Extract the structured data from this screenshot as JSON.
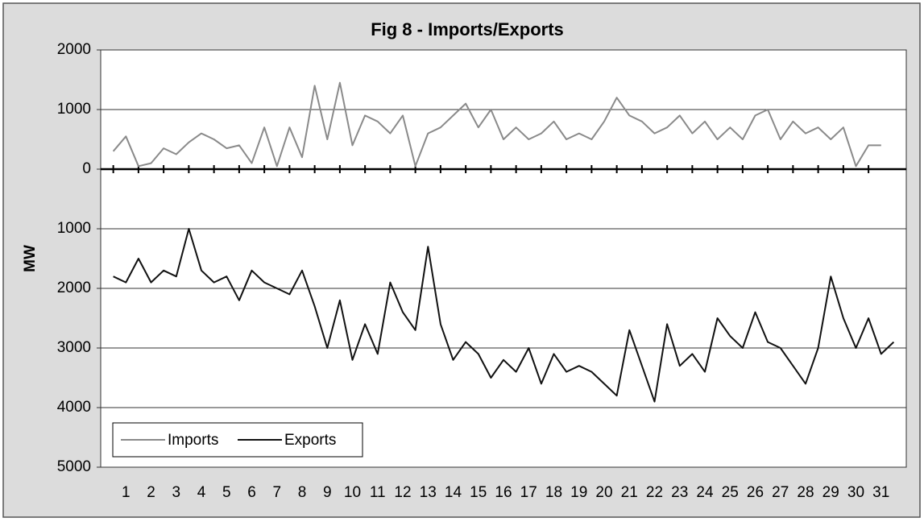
{
  "chart_data": {
    "type": "line",
    "title": "Fig 8 - Imports/Exports",
    "y_label": "MW",
    "x": [
      0.5,
      1,
      1.5,
      2,
      2.5,
      3,
      3.5,
      4,
      4.5,
      5,
      5.5,
      6,
      6.5,
      7,
      7.5,
      8,
      8.5,
      9,
      9.5,
      10,
      10.5,
      11,
      11.5,
      12,
      12.5,
      13,
      13.5,
      14,
      14.5,
      15,
      15.5,
      16,
      16.5,
      17,
      17.5,
      18,
      18.5,
      19,
      19.5,
      20,
      20.5,
      21,
      21.5,
      22,
      22.5,
      23,
      23.5,
      24,
      24.5,
      25,
      25.5,
      26,
      26.5,
      27,
      27.5,
      28,
      28.5,
      29,
      29.5,
      30,
      30.5,
      31,
      31.5
    ],
    "series": [
      {
        "name": "Imports",
        "color": "#8a8a8a",
        "values": [
          300,
          550,
          50,
          100,
          350,
          250,
          450,
          600,
          500,
          350,
          400,
          100,
          700,
          50,
          700,
          200,
          1400,
          500,
          1450,
          400,
          900,
          800,
          600,
          900,
          50,
          600,
          700,
          900,
          1100,
          700,
          1000,
          500,
          700,
          500,
          600,
          800,
          500,
          600,
          500,
          800,
          1200,
          900,
          800,
          600,
          700,
          900,
          600,
          800,
          500,
          700,
          500,
          900,
          1000,
          500,
          800,
          600,
          700,
          500,
          700,
          50,
          400,
          400,
          null
        ]
      },
      {
        "name": "Exports",
        "color": "#111111",
        "values": [
          -1800,
          -1900,
          -1500,
          -1900,
          -1700,
          -1800,
          -1000,
          -1700,
          -1900,
          -1800,
          -2200,
          -1700,
          -1900,
          -2000,
          -2100,
          -1700,
          -2300,
          -3000,
          -2200,
          -3200,
          -2600,
          -3100,
          -1900,
          -2400,
          -2700,
          -1300,
          -2600,
          -3200,
          -2900,
          -3100,
          -3500,
          -3200,
          -3400,
          -3000,
          -3600,
          -3100,
          -3400,
          -3300,
          -3400,
          -3600,
          -3800,
          -2700,
          -3300,
          -3900,
          -2600,
          -3300,
          -3100,
          -3400,
          -2500,
          -2800,
          -3000,
          -2400,
          -2900,
          -3000,
          -3300,
          -3600,
          -3000,
          -1800,
          -2500,
          -3000,
          -2500,
          -3100,
          -2900
        ]
      }
    ],
    "xlim": [
      0,
      32
    ],
    "xticks": [
      1,
      2,
      3,
      4,
      5,
      6,
      7,
      8,
      9,
      10,
      11,
      12,
      13,
      14,
      15,
      16,
      17,
      18,
      19,
      20,
      21,
      22,
      23,
      24,
      25,
      26,
      27,
      28,
      29,
      30,
      31
    ],
    "ylim": [
      -5000,
      2000
    ],
    "yticks": [
      2000,
      1000,
      0,
      {
        "value": -1000,
        "label": "1000"
      },
      {
        "value": -2000,
        "label": "2000"
      },
      {
        "value": -3000,
        "label": "3000"
      },
      {
        "value": -4000,
        "label": "4000"
      },
      {
        "value": -5000,
        "label": "5000"
      }
    ],
    "grid": true,
    "legend": "lower left"
  }
}
